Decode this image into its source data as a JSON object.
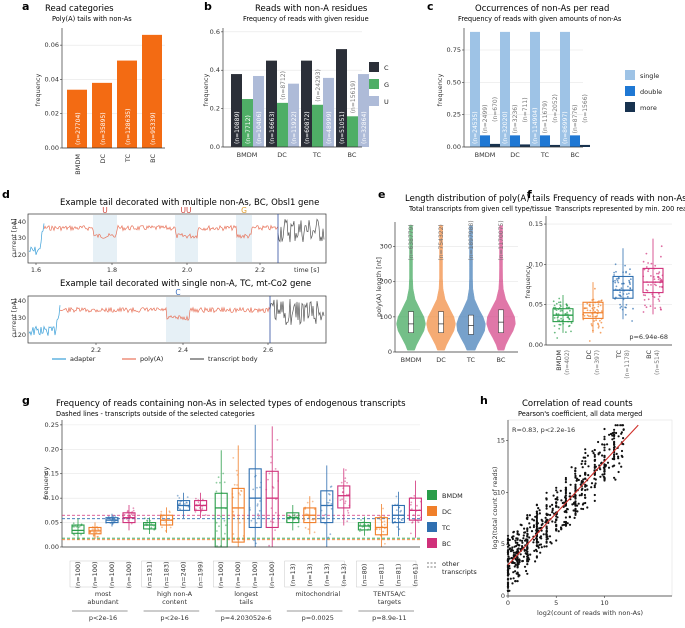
{
  "panels": {
    "a": {
      "label": "a",
      "title": "Read categories",
      "subtitle": "Poly(A) tails with non-As",
      "ylabel": "frequency"
    },
    "b": {
      "label": "b",
      "title": "Reads with non-A residues",
      "subtitle": "Frequency of reads with given residue",
      "ylabel": "frequency"
    },
    "c": {
      "label": "c",
      "title": "Occurrences of non-As per read",
      "subtitle": "Frequency of reads with given amounts of non-As",
      "ylabel": "frequency"
    },
    "d": {
      "label": "d",
      "title1": "Example tail decorated with multiple non-As, BC, Obsl1 gene",
      "title2": "Example tail decorated with single non-A, TC, mt-Co2 gene",
      "ylabel": "current [pA]",
      "xlabel": "time [s]",
      "residues1": [
        "U",
        "UU",
        "G"
      ],
      "residue2": "C",
      "legend": [
        "adapter",
        "poly(A)",
        "transcript body"
      ],
      "colors": {
        "adapter": "#3a9fd8",
        "polyA": "#e8735a",
        "body": "#555555",
        "U": "#d0433a",
        "G": "#e0a030",
        "C": "#3a6fc0"
      }
    },
    "e": {
      "label": "e",
      "title": "Length distribution of poly(A) tails",
      "subtitle": "Total transcripts from given cell type/tissue",
      "ylabel": "poly(A) length [nt]"
    },
    "f": {
      "label": "f",
      "title": "Frequency of reads with non-As",
      "subtitle": "Transcripts represented by min. 200 reads",
      "ylabel": "frequency",
      "pvalue": "p=6.94e-68"
    },
    "g": {
      "label": "g",
      "title": "Frequency of reads containing non-As in selected types of endogenous transcripts",
      "subtitle": "Dashed lines - transcripts outside of the selected categories",
      "ylabel": "frequency",
      "legend_other": "other\ntranscripts"
    },
    "h": {
      "label": "h",
      "title": "Correlation of read counts",
      "subtitle": "Pearson's coefficient, all data merged",
      "stat": "R=0.83,   p<2.2e-16",
      "ylabel": "log2(total count of reads)",
      "xlabel": "log2(count of reads with non-As)"
    }
  },
  "colors": {
    "BMDM": "#2a9d4a",
    "DC": "#f07f2a",
    "TC": "#2f6fb0",
    "BC": "#d0307a",
    "orange": "#f36b13",
    "C": "#2b2f38",
    "G": "#4fae66",
    "U": "#aebbd8",
    "single": "#9ec3e6",
    "double": "#1f78d4",
    "more": "#17324f"
  },
  "chart_data": [
    {
      "id": "a",
      "type": "bar",
      "categories": [
        "BMDM",
        "DC",
        "TC",
        "BC"
      ],
      "values": [
        0.034,
        0.038,
        0.051,
        0.066
      ],
      "labels": [
        "(n=27704)",
        "(n=35895)",
        "(n=128635)",
        "(n=95339)"
      ],
      "ylim": [
        0,
        0.07
      ],
      "yticks": [
        "0.00",
        "0.02",
        "0.04",
        "0.06"
      ]
    },
    {
      "id": "b",
      "type": "bar",
      "categories": [
        "BMDM",
        "DC",
        "TC",
        "BC"
      ],
      "series": [
        {
          "name": "C",
          "values": [
            0.38,
            0.45,
            0.45,
            0.51
          ],
          "labels": [
            "(n=10889)",
            "(n=16663)",
            "(n=60872)",
            "(n=51051)"
          ]
        },
        {
          "name": "G",
          "values": [
            0.25,
            0.23,
            0.22,
            0.16
          ],
          "labels": [
            "(n=7712)",
            "(n=8712)",
            "(n=24293)",
            "(n=15619)"
          ]
        },
        {
          "name": "U",
          "values": [
            0.37,
            0.33,
            0.36,
            0.38
          ],
          "labels": [
            "(n=10406)",
            "(n=11922)",
            "(n=48999)",
            "(n=32864)"
          ]
        }
      ],
      "ylim": [
        0,
        0.62
      ],
      "yticks": [
        "0.0",
        "0.2",
        "0.4",
        "0.6"
      ]
    },
    {
      "id": "c",
      "type": "bar",
      "categories": [
        "BMDM",
        "DC",
        "TC",
        "BC"
      ],
      "series": [
        {
          "name": "single",
          "values": [
            0.89,
            0.89,
            0.89,
            0.89
          ],
          "labels": [
            "(n=24535)",
            "(n=32020)",
            "(n=114904)",
            "(n=86997)"
          ]
        },
        {
          "name": "double",
          "values": [
            0.09,
            0.09,
            0.09,
            0.09
          ],
          "labels": [
            "(n=2499)",
            "(n=3236)",
            "(n=11679)",
            "(n=8776)"
          ]
        },
        {
          "name": "more",
          "values": [
            0.024,
            0.02,
            0.016,
            0.016
          ],
          "labels": [
            "(n=670)",
            "(n=711)",
            "(n=2052)",
            "(n=1566)"
          ]
        }
      ],
      "ylim": [
        0,
        0.92
      ],
      "yticks": [
        "0.00",
        "0.25",
        "0.50",
        "0.75"
      ]
    },
    {
      "id": "e",
      "type": "violin",
      "categories": [
        "BMDM",
        "DC",
        "TC",
        "BC"
      ],
      "medians": [
        80,
        80,
        75,
        85
      ],
      "q1": [
        55,
        55,
        50,
        55
      ],
      "q3": [
        115,
        115,
        105,
        120
      ],
      "labels": [
        "(n=638779)",
        "(n=754322)",
        "(n=1897988)",
        "(n=1170075)"
      ],
      "ylim": [
        0,
        370
      ],
      "yticks": [
        "0",
        "100",
        "200",
        "300"
      ]
    },
    {
      "id": "f",
      "type": "box",
      "categories": [
        "BMDM",
        "DC",
        "TC",
        "BC"
      ],
      "medians": [
        0.037,
        0.04,
        0.068,
        0.078
      ],
      "q1": [
        0.029,
        0.033,
        0.058,
        0.065
      ],
      "q3": [
        0.045,
        0.053,
        0.085,
        0.095
      ],
      "whisk": [
        [
          0.015,
          0.062
        ],
        [
          0.015,
          0.078
        ],
        [
          0.032,
          0.12
        ],
        [
          0.038,
          0.132
        ]
      ],
      "labels": [
        "(n=402)",
        "(n=397)",
        "(n=1178)",
        "(n=514)"
      ],
      "ylim": [
        0,
        0.16
      ],
      "yticks": [
        "0.00",
        "0.05",
        "0.10",
        "0.15"
      ]
    },
    {
      "id": "g",
      "type": "box",
      "groups": [
        "most\nabundant",
        "high non-A\ncontent",
        "longest\ntails",
        "mitochondrial",
        "TENT5A/C\ntargets"
      ],
      "pvalues": [
        "p<2e-16",
        "p<2e-16",
        "p=4.203052e-6",
        "p=0.0025",
        "p=8.9e-11"
      ],
      "series": [
        "BMDM",
        "DC",
        "TC",
        "BC"
      ],
      "medians": [
        [
          0.034,
          0.033,
          0.055,
          0.06
        ],
        [
          0.045,
          0.055,
          0.085,
          0.085
        ],
        [
          0.08,
          0.08,
          0.1,
          0.1
        ],
        [
          0.06,
          0.065,
          0.085,
          0.105
        ],
        [
          0.043,
          0.04,
          0.065,
          0.075
        ]
      ],
      "q1": [
        [
          0.028,
          0.027,
          0.05,
          0.05
        ],
        [
          0.037,
          0.045,
          0.075,
          0.075
        ],
        [
          0.0,
          0.01,
          0.04,
          0.04
        ],
        [
          0.05,
          0.05,
          0.05,
          0.08
        ],
        [
          0.035,
          0.025,
          0.05,
          0.055
        ]
      ],
      "q3": [
        [
          0.045,
          0.04,
          0.06,
          0.07
        ],
        [
          0.05,
          0.065,
          0.095,
          0.095
        ],
        [
          0.11,
          0.12,
          0.16,
          0.155
        ],
        [
          0.07,
          0.08,
          0.115,
          0.125
        ],
        [
          0.05,
          0.06,
          0.085,
          0.1
        ]
      ],
      "counts": [
        [
          "(n=100)",
          "(n=100)",
          "(n=100)",
          "(n=100)"
        ],
        [
          "(n=191)",
          "(n=183)",
          "(n=240)",
          "(n=199)"
        ],
        [
          "(n=100)",
          "(n=100)",
          "(n=100)",
          "(n=100)"
        ],
        [
          "(n=13)",
          "(n=13)",
          "(n=13)",
          "(n=13)"
        ],
        [
          "(n=80)",
          "(n=81)",
          "(n=81)",
          "(n=61)"
        ]
      ],
      "dashed": [
        0.018,
        0.015,
        0.058,
        0.065
      ],
      "ylim": [
        0,
        0.26
      ],
      "yticks": [
        "0.00",
        "0.05",
        "0.10",
        "0.15",
        "0.20",
        "0.25"
      ]
    },
    {
      "id": "h",
      "type": "scatter",
      "xlim": [
        0,
        17
      ],
      "ylim": [
        0,
        17
      ],
      "xticks": [
        "0",
        "5",
        "10"
      ],
      "yticks": [
        "0",
        "5",
        "10",
        "15"
      ],
      "fit": {
        "slope": 1.0,
        "intercept": 3.0
      }
    }
  ]
}
